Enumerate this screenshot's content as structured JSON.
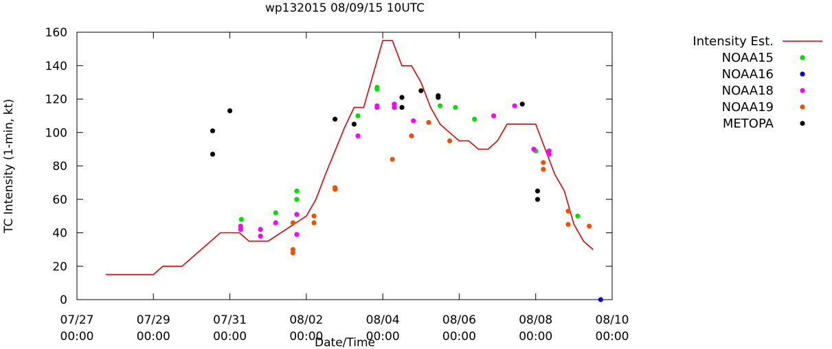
{
  "chart_data": {
    "type": "line+scatter",
    "title": "wp132015 08/09/15 10UTC",
    "xlabel": "Date/Time",
    "ylabel": "TC Intensity (1-min, kt)",
    "xlim_days": [
      0,
      14
    ],
    "ylim": [
      0,
      160
    ],
    "yticks": [
      0,
      20,
      40,
      60,
      80,
      100,
      120,
      140,
      160
    ],
    "xticks": [
      {
        "day": 0,
        "date": "07/27",
        "time": "00:00"
      },
      {
        "day": 2,
        "date": "07/29",
        "time": "00:00"
      },
      {
        "day": 4,
        "date": "07/31",
        "time": "00:00"
      },
      {
        "day": 6,
        "date": "08/02",
        "time": "00:00"
      },
      {
        "day": 8,
        "date": "08/04",
        "time": "00:00"
      },
      {
        "day": 10,
        "date": "08/06",
        "time": "00:00"
      },
      {
        "day": 12,
        "date": "08/08",
        "time": "00:00"
      },
      {
        "day": 14,
        "date": "08/10",
        "time": "00:00"
      }
    ],
    "grid": false,
    "legend_position": "outside-right",
    "intensity_est": {
      "name": "Intensity Est.",
      "color": "#e00000",
      "points": [
        [
          0.75,
          15
        ],
        [
          2.0,
          15
        ],
        [
          2.25,
          20
        ],
        [
          2.75,
          20
        ],
        [
          3.75,
          40
        ],
        [
          4.25,
          40
        ],
        [
          4.5,
          35
        ],
        [
          5.0,
          35
        ],
        [
          6.0,
          50
        ],
        [
          6.25,
          60
        ],
        [
          6.5,
          75
        ],
        [
          7.0,
          103
        ],
        [
          7.25,
          115
        ],
        [
          7.5,
          115
        ],
        [
          8.0,
          155
        ],
        [
          8.25,
          155
        ],
        [
          8.5,
          140
        ],
        [
          8.75,
          140
        ],
        [
          9.0,
          130
        ],
        [
          9.25,
          115
        ],
        [
          9.5,
          105
        ],
        [
          9.75,
          100
        ],
        [
          10.0,
          95
        ],
        [
          10.25,
          95
        ],
        [
          10.5,
          90
        ],
        [
          10.75,
          90
        ],
        [
          11.0,
          95
        ],
        [
          11.25,
          105
        ],
        [
          11.75,
          105
        ],
        [
          12.0,
          105
        ],
        [
          12.25,
          90
        ],
        [
          12.5,
          75
        ],
        [
          12.75,
          65
        ],
        [
          13.0,
          45
        ],
        [
          13.25,
          35
        ],
        [
          13.5,
          30
        ]
      ]
    },
    "series": [
      {
        "name": "NOAA15",
        "color": "#00e000",
        "points": [
          [
            4.3,
            48
          ],
          [
            5.2,
            52
          ],
          [
            5.75,
            65
          ],
          [
            5.75,
            60
          ],
          [
            7.35,
            110
          ],
          [
            7.85,
            127
          ],
          [
            7.85,
            126
          ],
          [
            9.5,
            116
          ],
          [
            9.9,
            115
          ],
          [
            10.4,
            108
          ],
          [
            12.0,
            89
          ],
          [
            12.35,
            87
          ],
          [
            13.1,
            50
          ]
        ]
      },
      {
        "name": "NOAA16",
        "color": "#0000e0",
        "points": [
          [
            13.7,
            0
          ]
        ]
      },
      {
        "name": "NOAA18",
        "color": "#ff00ff",
        "points": [
          [
            4.28,
            44
          ],
          [
            4.28,
            42
          ],
          [
            4.8,
            42
          ],
          [
            4.8,
            38
          ],
          [
            5.2,
            46
          ],
          [
            5.75,
            51
          ],
          [
            5.75,
            39
          ],
          [
            7.35,
            98
          ],
          [
            7.85,
            116
          ],
          [
            7.85,
            115
          ],
          [
            8.3,
            117
          ],
          [
            8.3,
            115
          ],
          [
            8.8,
            107
          ],
          [
            10.9,
            110
          ],
          [
            11.45,
            116
          ],
          [
            11.95,
            90
          ],
          [
            12.35,
            89
          ],
          [
            12.35,
            87
          ]
        ]
      },
      {
        "name": "NOAA19",
        "color": "#f05000",
        "points": [
          [
            5.65,
            30
          ],
          [
            5.65,
            28
          ],
          [
            5.65,
            46
          ],
          [
            6.2,
            50
          ],
          [
            6.2,
            46
          ],
          [
            6.75,
            67
          ],
          [
            6.75,
            66
          ],
          [
            8.25,
            84
          ],
          [
            8.75,
            98
          ],
          [
            9.2,
            106
          ],
          [
            9.75,
            95
          ],
          [
            12.2,
            82
          ],
          [
            12.2,
            78
          ],
          [
            12.85,
            53
          ],
          [
            12.85,
            45
          ],
          [
            13.4,
            44
          ]
        ]
      },
      {
        "name": "METOPA",
        "color": "#000000",
        "points": [
          [
            3.55,
            101
          ],
          [
            3.55,
            87
          ],
          [
            4.0,
            113
          ],
          [
            6.75,
            108
          ],
          [
            7.25,
            105
          ],
          [
            8.5,
            121
          ],
          [
            8.5,
            115
          ],
          [
            9.0,
            125
          ],
          [
            9.45,
            122
          ],
          [
            9.45,
            121
          ],
          [
            11.65,
            117
          ],
          [
            12.05,
            65
          ],
          [
            12.05,
            60
          ]
        ]
      }
    ]
  }
}
